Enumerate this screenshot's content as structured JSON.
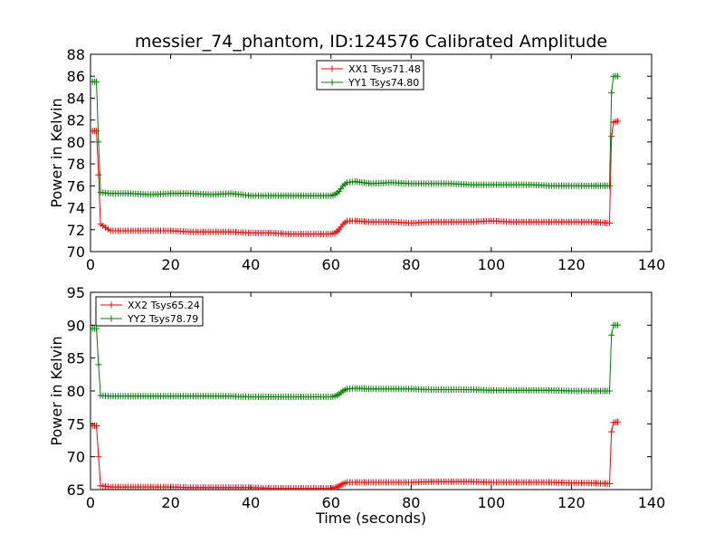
{
  "title": "messier_74_phantom, ID:124576 Calibrated Amplitude",
  "chart_data": [
    {
      "type": "line",
      "ylabel": "Power in Kelvin",
      "xlabel": "",
      "xlim": [
        0,
        140
      ],
      "ylim": [
        70,
        88
      ],
      "xticks": [
        "0",
        "20",
        "40",
        "60",
        "80",
        "100",
        "120",
        "140"
      ],
      "yticks": [
        "70",
        "72",
        "74",
        "76",
        "78",
        "80",
        "82",
        "84",
        "86",
        "88"
      ],
      "legend_position": "top-center",
      "series": [
        {
          "name": "XX1 Tsys71.48",
          "color": "#ff0000",
          "marker": "plus",
          "x": [
            0.5,
            1.5,
            2,
            2.5,
            5,
            10,
            15,
            20,
            25,
            30,
            35,
            40,
            45,
            50,
            55,
            60,
            61,
            62,
            63,
            64,
            66,
            70,
            75,
            80,
            85,
            90,
            95,
            100,
            105,
            110,
            115,
            120,
            125,
            129.5,
            130,
            130.5,
            131.5
          ],
          "y": [
            81.0,
            81.0,
            77.0,
            72.5,
            71.9,
            71.9,
            71.9,
            71.9,
            71.8,
            71.8,
            71.8,
            71.7,
            71.7,
            71.6,
            71.6,
            71.6,
            71.7,
            72.0,
            72.5,
            72.8,
            72.8,
            72.7,
            72.7,
            72.6,
            72.7,
            72.7,
            72.7,
            72.8,
            72.7,
            72.7,
            72.7,
            72.7,
            72.7,
            72.6,
            80.5,
            81.8,
            81.9
          ]
        },
        {
          "name": "YY1 Tsys74.80",
          "color": "#008000",
          "marker": "plus",
          "x": [
            0.5,
            1.5,
            2,
            2.5,
            5,
            10,
            15,
            20,
            25,
            30,
            35,
            40,
            45,
            50,
            55,
            60,
            61,
            62,
            63,
            64,
            66,
            70,
            75,
            80,
            85,
            90,
            95,
            100,
            105,
            110,
            115,
            120,
            125,
            129.5,
            130,
            130.5,
            131.5
          ],
          "y": [
            85.5,
            85.5,
            80.0,
            75.4,
            75.3,
            75.3,
            75.2,
            75.3,
            75.3,
            75.2,
            75.3,
            75.1,
            75.1,
            75.1,
            75.1,
            75.1,
            75.2,
            75.5,
            76.0,
            76.3,
            76.4,
            76.2,
            76.3,
            76.2,
            76.2,
            76.2,
            76.1,
            76.1,
            76.1,
            76.1,
            76.0,
            76.0,
            76.0,
            76.0,
            84.5,
            86.0,
            86.0
          ]
        }
      ]
    },
    {
      "type": "line",
      "ylabel": "Power in Kelvin",
      "xlabel": "Time (seconds)",
      "xlim": [
        0,
        140
      ],
      "ylim": [
        65,
        95
      ],
      "xticks": [
        "0",
        "20",
        "40",
        "60",
        "80",
        "100",
        "120",
        "140"
      ],
      "yticks": [
        "65",
        "70",
        "75",
        "80",
        "85",
        "90",
        "95"
      ],
      "legend_position": "top-left",
      "series": [
        {
          "name": "XX2 Tsys65.24",
          "color": "#ff0000",
          "marker": "plus",
          "x": [
            0.5,
            1.5,
            2,
            2.5,
            5,
            10,
            15,
            20,
            25,
            30,
            35,
            40,
            45,
            50,
            55,
            60,
            61,
            62,
            63,
            64,
            66,
            70,
            75,
            80,
            85,
            90,
            95,
            100,
            105,
            110,
            115,
            120,
            125,
            129.5,
            130,
            130.5,
            131.5
          ],
          "y": [
            74.7,
            74.7,
            70.0,
            65.6,
            65.4,
            65.4,
            65.4,
            65.4,
            65.3,
            65.3,
            65.3,
            65.3,
            65.2,
            65.2,
            65.2,
            65.2,
            65.3,
            65.5,
            65.9,
            66.1,
            66.1,
            66.1,
            66.1,
            66.1,
            66.2,
            66.2,
            66.2,
            66.1,
            66.1,
            66.1,
            66.1,
            66.0,
            66.0,
            65.9,
            73.8,
            75.2,
            75.3
          ]
        },
        {
          "name": "YY2 Tsys78.79",
          "color": "#008000",
          "marker": "plus",
          "x": [
            0.5,
            1.5,
            2,
            2.5,
            5,
            10,
            15,
            20,
            25,
            30,
            35,
            40,
            45,
            50,
            55,
            60,
            61,
            62,
            63,
            64,
            66,
            70,
            75,
            80,
            85,
            90,
            95,
            100,
            105,
            110,
            115,
            120,
            125,
            129.5,
            130,
            130.5,
            131.5
          ],
          "y": [
            89.5,
            89.5,
            84.0,
            79.3,
            79.2,
            79.2,
            79.2,
            79.2,
            79.2,
            79.2,
            79.2,
            79.1,
            79.1,
            79.1,
            79.1,
            79.1,
            79.2,
            79.5,
            80.0,
            80.3,
            80.4,
            80.3,
            80.3,
            80.3,
            80.2,
            80.2,
            80.2,
            80.1,
            80.1,
            80.1,
            80.1,
            80.0,
            80.0,
            80.0,
            88.5,
            90.0,
            90.0
          ]
        }
      ]
    }
  ]
}
